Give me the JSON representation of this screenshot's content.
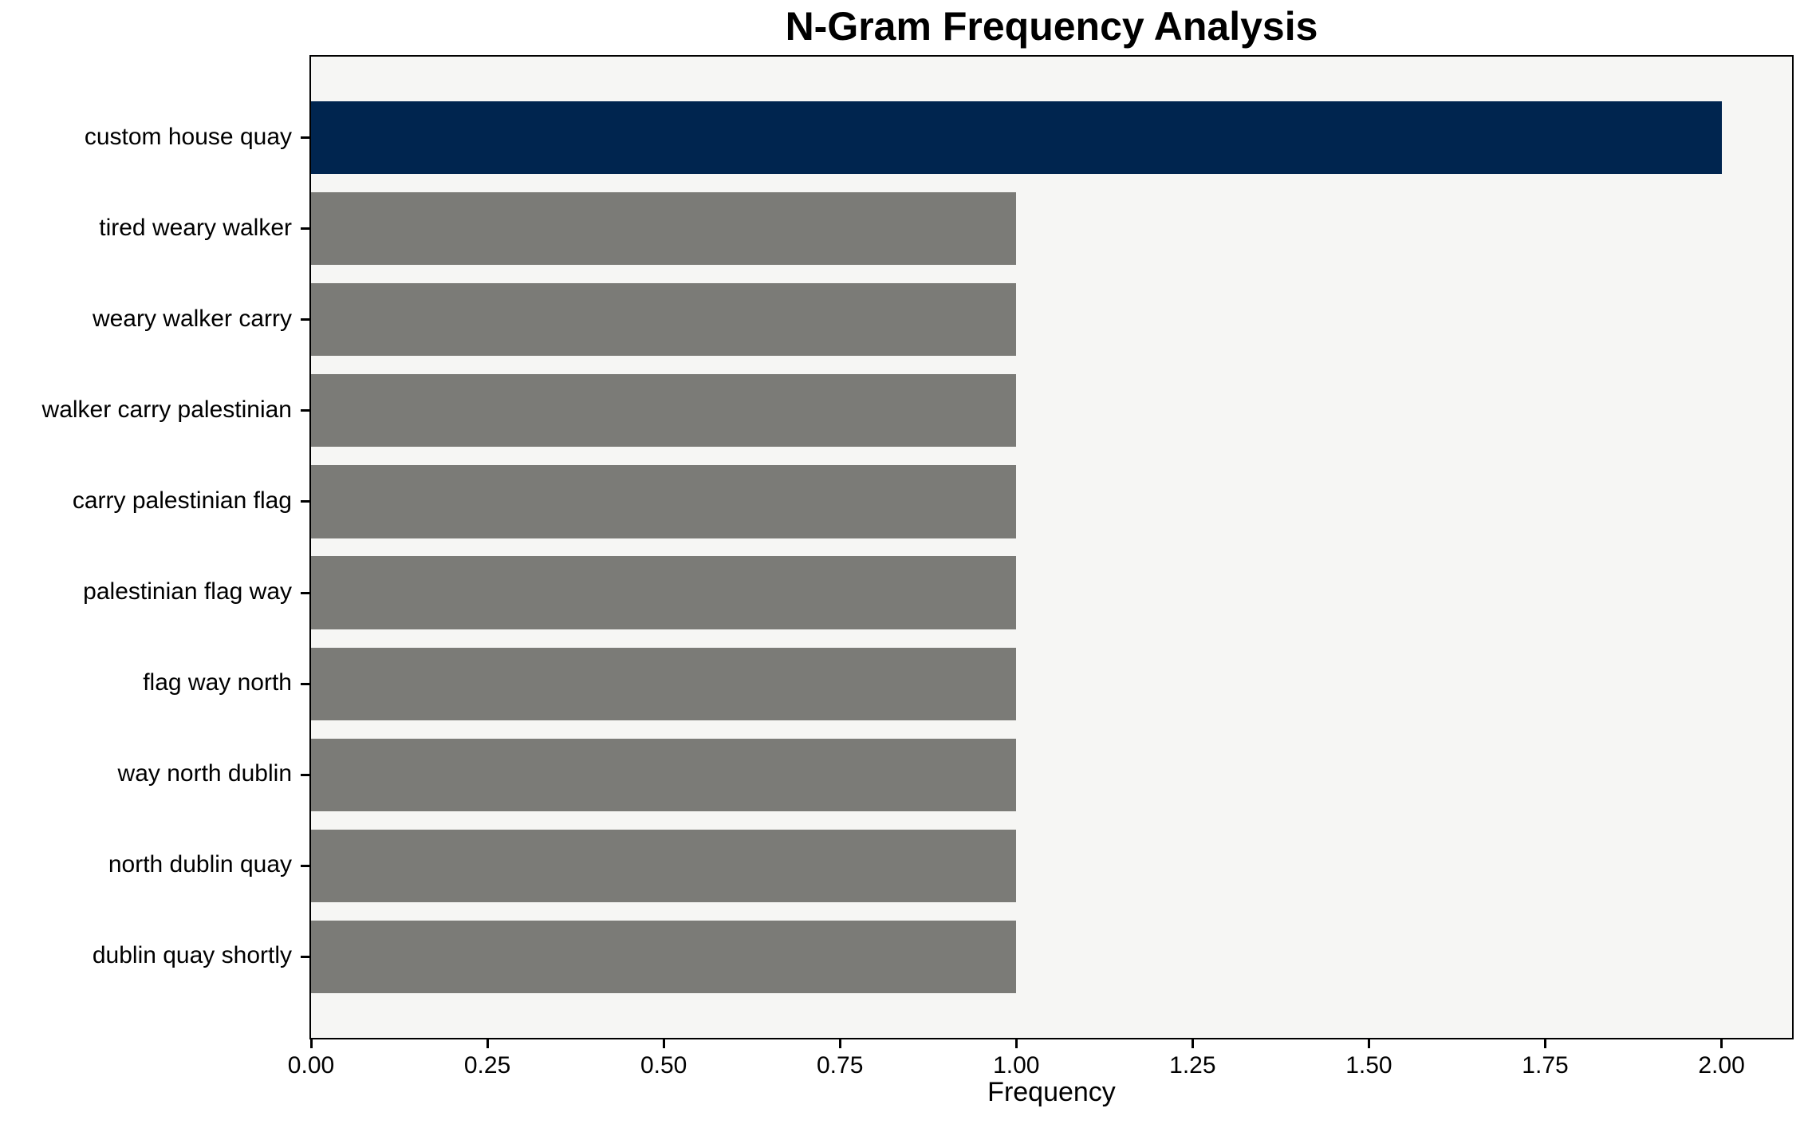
{
  "chart_data": {
    "type": "bar",
    "orientation": "horizontal",
    "title": "N-Gram Frequency Analysis",
    "xlabel": "Frequency",
    "ylabel": "",
    "categories": [
      "custom house quay",
      "tired weary walker",
      "weary walker carry",
      "walker carry palestinian",
      "carry palestinian flag",
      "palestinian flag way",
      "flag way north",
      "way north dublin",
      "north dublin quay",
      "dublin quay shortly"
    ],
    "values": [
      2,
      1,
      1,
      1,
      1,
      1,
      1,
      1,
      1,
      1
    ],
    "xlim": [
      0,
      2.1
    ],
    "xtick_values": [
      0,
      0.25,
      0.5,
      0.75,
      1.0,
      1.25,
      1.5,
      1.75,
      2.0
    ],
    "xtick_labels": [
      "0.00",
      "0.25",
      "0.50",
      "0.75",
      "1.00",
      "1.25",
      "1.50",
      "1.75",
      "2.00"
    ],
    "bar_colors": [
      "#00254f",
      "#7b7b77",
      "#7b7b77",
      "#7b7b77",
      "#7b7b77",
      "#7b7b77",
      "#7b7b77",
      "#7b7b77",
      "#7b7b77",
      "#7b7b77"
    ],
    "colors": {
      "highlight_bar": "#00254f",
      "default_bar": "#7b7b77",
      "plot_background": "#f6f6f4",
      "page_background": "#ffffff",
      "spine": "#000000",
      "text": "#000000"
    },
    "grid": false,
    "legend": null
  }
}
